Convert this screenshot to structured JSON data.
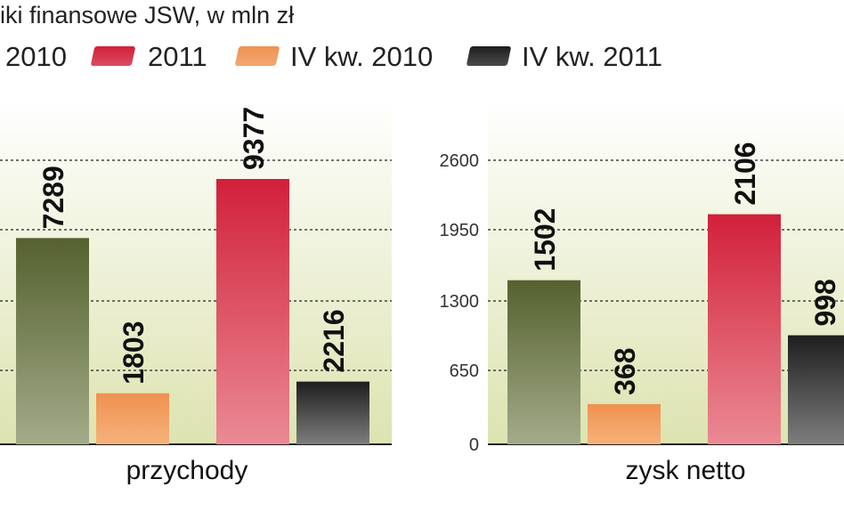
{
  "title": "iki finansowe JSW, w mln zł",
  "colors": {
    "2010": "#55612e",
    "2011": "#d2203a",
    "IV_2010": "#ef9150",
    "IV_2011": "#1e1e1e"
  },
  "chart_data": [
    {
      "type": "bar",
      "title": "iki finansowe JSW, w mln zł",
      "xlabel": "przychody",
      "categories": [
        "przychody"
      ],
      "series": [
        {
          "name": "2010",
          "values": [
            7289
          ]
        },
        {
          "name": "IV kw. 2010",
          "values": [
            1803
          ]
        },
        {
          "name": "2011",
          "values": [
            9377
          ]
        },
        {
          "name": "IV kw. 2011",
          "values": [
            2216
          ]
        }
      ],
      "ylim": [
        0,
        10000
      ],
      "grid": true
    },
    {
      "type": "bar",
      "xlabel": "zysk netto",
      "categories": [
        "zysk netto"
      ],
      "series": [
        {
          "name": "2010",
          "values": [
            1502
          ]
        },
        {
          "name": "IV kw. 2010",
          "values": [
            368
          ]
        },
        {
          "name": "2011",
          "values": [
            2106
          ]
        },
        {
          "name": "IV kw. 2011",
          "values": [
            998
          ]
        }
      ],
      "ylim": [
        0,
        2600
      ],
      "yticks": [
        "0",
        "650",
        "1300",
        "1950",
        "2600"
      ],
      "grid": true
    }
  ],
  "legend": {
    "items": [
      {
        "label": "2010",
        "color_key": "2010"
      },
      {
        "label": "2011",
        "color_key": "2011"
      },
      {
        "label": "IV kw. 2010",
        "color_key": "IV_2010"
      },
      {
        "label": "IV kw. 2011",
        "color_key": "IV_2011"
      }
    ]
  }
}
